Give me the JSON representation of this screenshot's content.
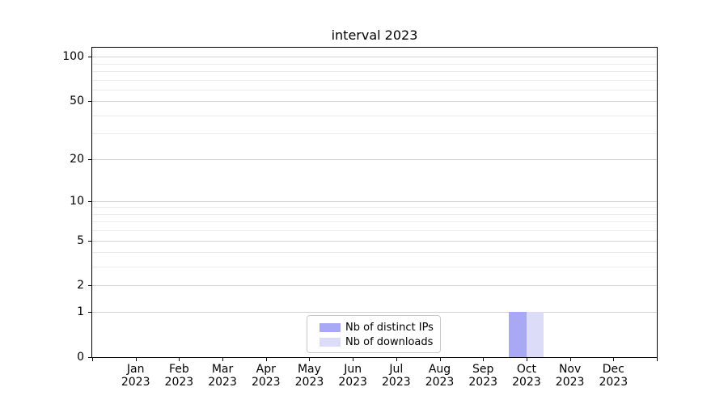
{
  "chart_data": {
    "type": "bar",
    "title": "interval 2023",
    "categories": [
      "Jan",
      "Feb",
      "Mar",
      "Apr",
      "May",
      "Jun",
      "Jul",
      "Aug",
      "Sep",
      "Oct",
      "Nov",
      "Dec"
    ],
    "x_year": "2023",
    "series": [
      {
        "name": "Nb of distinct IPs",
        "color": "#a8a8f4",
        "values": [
          0,
          0,
          0,
          0,
          0,
          0,
          0,
          0,
          0,
          1,
          0,
          0
        ]
      },
      {
        "name": "Nb of downloads",
        "color": "#dcdcf8",
        "values": [
          0,
          0,
          0,
          0,
          0,
          0,
          0,
          0,
          0,
          1,
          0,
          0
        ]
      }
    ],
    "yscale": "log1p",
    "ylim": [
      0,
      115
    ],
    "y_ticks": [
      {
        "value": 0,
        "label": "0"
      },
      {
        "value": 1,
        "label": "1"
      },
      {
        "value": 2,
        "label": "2"
      },
      {
        "value": 5,
        "label": "5"
      },
      {
        "value": 10,
        "label": "10"
      },
      {
        "value": 20,
        "label": "20"
      },
      {
        "value": 50,
        "label": "50"
      },
      {
        "value": 100,
        "label": "100"
      }
    ],
    "y_minor_ticks": [
      3,
      4,
      6,
      7,
      8,
      9,
      30,
      40,
      60,
      70,
      80,
      90
    ],
    "xlabel": "",
    "ylabel": "",
    "grid": true,
    "legend_position": "bottom-center"
  },
  "colors": {
    "background": "#ffffff",
    "spine": "#000000",
    "grid_major": "#d2d2d2",
    "grid_minor": "#eaeaea",
    "legend_border": "#c9c9c9",
    "text": "#000000"
  }
}
